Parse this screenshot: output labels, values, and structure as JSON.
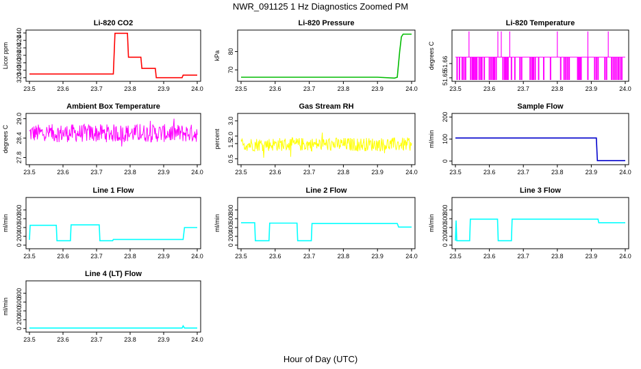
{
  "page": {
    "title": "NWR_091125  1 Hz Diagnostics Zoomed PM",
    "xlabel": "Hour of Day (UTC)"
  },
  "chart_data": [
    {
      "type": "line",
      "title": "Li-820 CO2",
      "ylabel": "Licor ppm",
      "color": "#ff0000",
      "xlim": [
        23.5,
        24.0
      ],
      "ylim": [
        314,
        444
      ],
      "xticks": [
        "23.5",
        "23.6",
        "23.7",
        "23.8",
        "23.9",
        "24.0"
      ],
      "xtick_values": [
        23.5,
        23.6,
        23.7,
        23.8,
        23.9,
        24.0
      ],
      "yticks": [
        "320",
        "340",
        "360",
        "380",
        "400",
        "420",
        "440"
      ],
      "ytick_values": [
        320,
        340,
        360,
        380,
        400,
        420,
        440
      ],
      "series": [
        {
          "x": [
            23.5,
            23.75,
            23.755,
            23.792,
            23.795,
            23.832,
            23.835,
            23.875,
            23.878,
            23.955,
            23.958,
            24.0
          ],
          "y": [
            330,
            330,
            439,
            439,
            375,
            375,
            345,
            345,
            320,
            320,
            327,
            327
          ]
        }
      ]
    },
    {
      "type": "line",
      "title": "Li-820 Pressure",
      "ylabel": "kPa",
      "color": "#00bb00",
      "xlim": [
        23.5,
        24.0
      ],
      "ylim": [
        64.5,
        91
      ],
      "xticks": [
        "23.5",
        "23.6",
        "23.7",
        "23.8",
        "23.9",
        "24.0"
      ],
      "xtick_values": [
        23.5,
        23.6,
        23.7,
        23.8,
        23.9,
        24.0
      ],
      "yticks": [
        "70",
        "80"
      ],
      "ytick_values": [
        70,
        80
      ],
      "series": [
        {
          "x": [
            23.5,
            23.9,
            23.95,
            23.958,
            23.965,
            23.97,
            23.975,
            24.0
          ],
          "y": [
            66,
            66,
            65.5,
            66,
            80,
            88,
            89.5,
            89.5
          ]
        }
      ]
    },
    {
      "type": "line",
      "title": "Li-820 Temperature",
      "ylabel": "degrees C",
      "color": "#ff00ff",
      "xlim": [
        23.5,
        24.0
      ],
      "ylim": [
        51.6485,
        51.6825
      ],
      "xticks": [
        "23.5",
        "23.6",
        "23.7",
        "23.8",
        "23.9",
        "24.0"
      ],
      "xtick_values": [
        23.5,
        23.6,
        23.7,
        23.8,
        23.9,
        24.0
      ],
      "yticks": [
        "51.65",
        "51.66"
      ],
      "ytick_values": [
        51.65,
        51.66
      ],
      "baseline": 51.6645,
      "low": 51.6485,
      "high": 51.6825,
      "down_spikes": [
        23.505,
        23.512,
        23.52,
        23.525,
        23.53,
        23.545,
        23.55,
        23.553,
        23.556,
        23.56,
        23.563,
        23.57,
        23.575,
        23.578,
        23.585,
        23.6,
        23.605,
        23.61,
        23.612,
        23.615,
        23.62,
        23.64,
        23.645,
        23.648,
        23.652,
        23.655,
        23.665,
        23.675,
        23.69,
        23.695,
        23.72,
        23.725,
        23.728,
        23.73,
        23.735,
        23.745,
        23.76,
        23.78,
        23.81,
        23.82,
        23.825,
        23.83,
        23.835,
        23.86,
        23.862,
        23.866,
        23.87,
        23.89,
        23.91,
        23.915,
        23.92,
        23.94,
        23.945,
        23.96,
        23.965,
        23.97,
        23.975,
        23.98,
        23.985,
        23.99
      ],
      "up_spikes": [
        23.54,
        23.625,
        23.635,
        23.66,
        23.8,
        23.89,
        23.95
      ]
    },
    {
      "type": "line",
      "title": "Ambient Box Temperature",
      "ylabel": "degrees C",
      "color": "#ff00ff",
      "xlim": [
        23.5,
        24.0
      ],
      "ylim": [
        27.62,
        29.12
      ],
      "xticks": [
        "23.5",
        "23.6",
        "23.7",
        "23.8",
        "23.9",
        "24.0"
      ],
      "xtick_values": [
        23.5,
        23.6,
        23.7,
        23.8,
        23.9,
        24.0
      ],
      "yticks": [
        "27.8",
        "28.4",
        "29.0"
      ],
      "ytick_values": [
        27.8,
        28.4,
        29.0
      ],
      "mean": 28.55,
      "noise": 0.28,
      "min": 27.7,
      "max": 29.0
    },
    {
      "type": "line",
      "title": "Gas Stream RH",
      "ylabel": "percent",
      "color": "#ffff00",
      "xlim": [
        23.5,
        24.0
      ],
      "ylim": [
        0.2,
        3.4
      ],
      "xticks": [
        "23.5",
        "23.6",
        "23.7",
        "23.8",
        "23.9",
        "24.0"
      ],
      "xtick_values": [
        23.5,
        23.6,
        23.7,
        23.8,
        23.9,
        24.0
      ],
      "yticks": [
        "0.5",
        "1.5",
        "2.0",
        "3.0"
      ],
      "ytick_values": [
        0.5,
        1.5,
        2.0,
        3.0
      ],
      "mean": 1.45,
      "noise": 0.45,
      "min": 0.35,
      "max": 3.3
    },
    {
      "type": "line",
      "title": "Sample Flow",
      "ylabel": "ml/min",
      "color": "#0000cc",
      "xlim": [
        23.5,
        24.0
      ],
      "ylim": [
        -10,
        210
      ],
      "xticks": [
        "23.5",
        "23.6",
        "23.7",
        "23.8",
        "23.9",
        "24.0"
      ],
      "xtick_values": [
        23.5,
        23.6,
        23.7,
        23.8,
        23.9,
        24.0
      ],
      "yticks": [
        "0",
        "100",
        "200"
      ],
      "ytick_values": [
        0,
        100,
        200
      ],
      "series": [
        {
          "x": [
            23.5,
            23.915,
            23.918,
            24.0
          ],
          "y": [
            105,
            105,
            2,
            2
          ]
        }
      ]
    },
    {
      "type": "line",
      "title": "Line 1 Flow",
      "ylabel": "ml/min",
      "color": "#00ffff",
      "xlim": [
        23.5,
        24.0
      ],
      "ylim": [
        -50,
        1050
      ],
      "xticks": [
        "23.5",
        "23.6",
        "23.7",
        "23.8",
        "23.9",
        "24.0"
      ],
      "xtick_values": [
        23.5,
        23.6,
        23.7,
        23.8,
        23.9,
        24.0
      ],
      "yticks": [
        "0",
        "200",
        "400",
        "600",
        "800"
      ],
      "ytick_values": [
        0,
        200,
        400,
        600,
        800
      ],
      "series": [
        {
          "x": [
            23.5,
            23.502,
            23.58,
            23.582,
            23.622,
            23.624,
            23.708,
            23.71,
            23.748,
            23.75,
            23.958,
            23.962,
            24.0
          ],
          "y": [
            120,
            450,
            450,
            100,
            100,
            460,
            460,
            100,
            100,
            130,
            130,
            400,
            400
          ]
        }
      ]
    },
    {
      "type": "line",
      "title": "Line 2 Flow",
      "ylabel": "ml/min",
      "color": "#00ffff",
      "xlim": [
        23.5,
        24.0
      ],
      "ylim": [
        -50,
        1050
      ],
      "xticks": [
        "23.5",
        "23.6",
        "23.7",
        "23.8",
        "23.9",
        "24.0"
      ],
      "xtick_values": [
        23.5,
        23.6,
        23.7,
        23.8,
        23.9,
        24.0
      ],
      "yticks": [
        "0",
        "200",
        "400",
        "600",
        "800"
      ],
      "ytick_values": [
        0,
        200,
        400,
        600,
        800
      ],
      "series": [
        {
          "x": [
            23.5,
            23.54,
            23.542,
            23.582,
            23.584,
            23.664,
            23.666,
            23.706,
            23.708,
            23.958,
            23.962,
            24.0
          ],
          "y": [
            510,
            510,
            100,
            100,
            500,
            500,
            100,
            100,
            490,
            490,
            410,
            410
          ]
        }
      ]
    },
    {
      "type": "line",
      "title": "Line 3 Flow",
      "ylabel": "ml/min",
      "color": "#00ffff",
      "xlim": [
        23.5,
        24.0
      ],
      "ylim": [
        -50,
        1050
      ],
      "xticks": [
        "23.5",
        "23.6",
        "23.7",
        "23.8",
        "23.9",
        "24.0"
      ],
      "xtick_values": [
        23.5,
        23.6,
        23.7,
        23.8,
        23.9,
        24.0
      ],
      "yticks": [
        "0",
        "200",
        "400",
        "600",
        "800"
      ],
      "ytick_values": [
        0,
        200,
        400,
        600,
        800
      ],
      "series": [
        {
          "x": [
            23.5,
            23.502,
            23.504,
            23.542,
            23.544,
            23.624,
            23.626,
            23.665,
            23.667,
            23.92,
            23.922,
            24.0
          ],
          "y": [
            100,
            560,
            100,
            100,
            590,
            590,
            100,
            100,
            590,
            590,
            510,
            510
          ]
        }
      ]
    },
    {
      "type": "line",
      "title": "Line 4 (LT) Flow",
      "ylabel": "ml/min",
      "color": "#00ffff",
      "xlim": [
        23.5,
        24.0
      ],
      "ylim": [
        -50,
        1050
      ],
      "xticks": [
        "23.5",
        "23.6",
        "23.7",
        "23.8",
        "23.9",
        "24.0"
      ],
      "xtick_values": [
        23.5,
        23.6,
        23.7,
        23.8,
        23.9,
        24.0
      ],
      "yticks": [
        "0",
        "200",
        "400",
        "600",
        "800"
      ],
      "ytick_values": [
        0,
        200,
        400,
        600,
        800
      ],
      "series": [
        {
          "x": [
            23.5,
            23.955,
            23.958,
            23.962,
            24.0
          ],
          "y": [
            10,
            10,
            60,
            10,
            10
          ]
        }
      ]
    }
  ]
}
